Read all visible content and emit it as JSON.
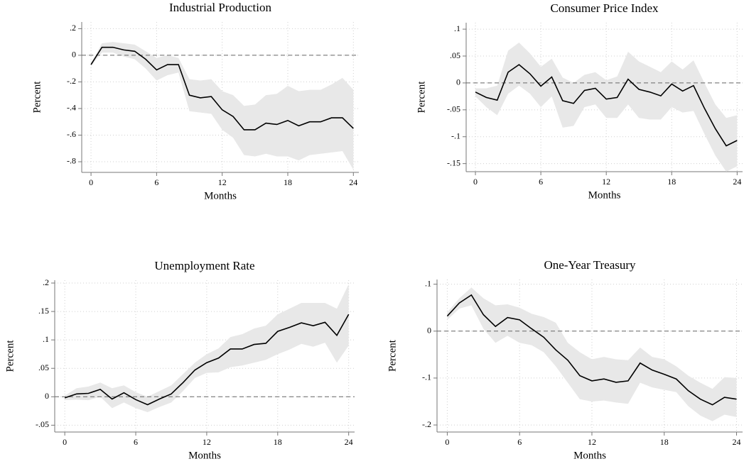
{
  "chart_data": [
    {
      "type": "line",
      "title": "Industrial Production",
      "x_label": "Months",
      "y_label": "Percent",
      "x": [
        0,
        1,
        2,
        3,
        4,
        5,
        6,
        7,
        8,
        9,
        10,
        11,
        12,
        13,
        14,
        15,
        16,
        17,
        18,
        19,
        20,
        21,
        22,
        23,
        24
      ],
      "values": [
        -0.07,
        0.06,
        0.06,
        0.04,
        0.03,
        -0.03,
        -0.11,
        -0.07,
        -0.07,
        -0.3,
        -0.32,
        -0.31,
        -0.41,
        -0.46,
        -0.56,
        -0.56,
        -0.51,
        -0.52,
        -0.49,
        -0.53,
        -0.5,
        -0.5,
        -0.47,
        -0.47,
        -0.55
      ],
      "upper": [
        -0.06,
        0.09,
        0.1,
        0.09,
        0.08,
        0.03,
        -0.02,
        0.0,
        -0.02,
        -0.18,
        -0.19,
        -0.18,
        -0.27,
        -0.3,
        -0.38,
        -0.37,
        -0.3,
        -0.29,
        -0.23,
        -0.27,
        -0.26,
        -0.26,
        -0.22,
        -0.17,
        -0.26
      ],
      "lower": [
        -0.08,
        0.02,
        0.02,
        -0.01,
        -0.03,
        -0.1,
        -0.19,
        -0.15,
        -0.13,
        -0.42,
        -0.43,
        -0.44,
        -0.56,
        -0.62,
        -0.75,
        -0.76,
        -0.74,
        -0.76,
        -0.76,
        -0.79,
        -0.75,
        -0.74,
        -0.73,
        -0.72,
        -0.86
      ],
      "color": "#000000",
      "band_color": "#e8e8e8",
      "reference_line": 0,
      "xlim": [
        -0.85,
        24.5
      ],
      "xticks": [
        0,
        6,
        12,
        18,
        24
      ],
      "ylim": [
        -0.88,
        0.25
      ],
      "yticks": [
        {
          "value": -0.8,
          "label": "-.8"
        },
        {
          "value": -0.6,
          "label": "-.6"
        },
        {
          "value": -0.4,
          "label": "-.4"
        },
        {
          "value": -0.2,
          "label": "-.2"
        },
        0,
        {
          "value": 0.2,
          "label": ".2"
        }
      ],
      "grid": true
    },
    {
      "type": "line",
      "title": "Consumer Price Index",
      "x_label": "Months",
      "y_label": "Percent",
      "x": [
        0,
        1,
        2,
        3,
        4,
        5,
        6,
        7,
        8,
        9,
        10,
        11,
        12,
        13,
        14,
        15,
        16,
        17,
        18,
        19,
        20,
        21,
        22,
        23,
        24
      ],
      "values": [
        -0.017,
        -0.027,
        -0.032,
        0.02,
        0.034,
        0.017,
        -0.006,
        0.011,
        -0.033,
        -0.038,
        -0.014,
        -0.01,
        -0.03,
        -0.027,
        0.007,
        -0.012,
        -0.017,
        -0.024,
        -0.002,
        -0.015,
        -0.005,
        -0.047,
        -0.085,
        -0.117,
        -0.107
      ],
      "upper": [
        -0.01,
        -0.01,
        -0.005,
        0.06,
        0.075,
        0.055,
        0.03,
        0.045,
        0.01,
        0.0,
        0.015,
        0.02,
        0.005,
        0.012,
        0.058,
        0.04,
        0.03,
        0.02,
        0.04,
        0.025,
        0.042,
        0.0,
        -0.04,
        -0.065,
        -0.06
      ],
      "lower": [
        -0.025,
        -0.045,
        -0.06,
        -0.02,
        -0.005,
        -0.02,
        -0.045,
        -0.025,
        -0.083,
        -0.08,
        -0.045,
        -0.04,
        -0.065,
        -0.065,
        -0.04,
        -0.065,
        -0.068,
        -0.068,
        -0.045,
        -0.055,
        -0.052,
        -0.095,
        -0.135,
        -0.165,
        -0.155
      ],
      "color": "#000000",
      "band_color": "#e8e8e8",
      "reference_line": 0,
      "xlim": [
        -0.85,
        24.5
      ],
      "xticks": [
        0,
        6,
        12,
        18,
        24
      ],
      "ylim": [
        -0.165,
        0.112
      ],
      "yticks": [
        {
          "value": -0.15,
          "label": "-.15"
        },
        {
          "value": -0.1,
          "label": "-.1"
        },
        {
          "value": -0.05,
          "label": "-.05"
        },
        0,
        {
          "value": 0.05,
          "label": ".05"
        },
        {
          "value": 0.1,
          "label": ".1"
        }
      ],
      "grid": true
    },
    {
      "type": "line",
      "title": "Unemployment Rate",
      "x_label": "Months",
      "y_label": "Percent",
      "x": [
        0,
        1,
        2,
        3,
        4,
        5,
        6,
        7,
        8,
        9,
        10,
        11,
        12,
        13,
        14,
        15,
        16,
        17,
        18,
        19,
        20,
        21,
        22,
        23,
        24
      ],
      "values": [
        -0.002,
        0.005,
        0.006,
        0.013,
        -0.004,
        0.007,
        -0.005,
        -0.014,
        -0.004,
        0.005,
        0.025,
        0.047,
        0.06,
        0.068,
        0.084,
        0.084,
        0.092,
        0.094,
        0.115,
        0.122,
        0.13,
        0.125,
        0.131,
        0.108,
        0.145
      ],
      "upper": [
        0.002,
        0.015,
        0.018,
        0.025,
        0.015,
        0.02,
        0.008,
        0.0,
        0.01,
        0.02,
        0.04,
        0.06,
        0.075,
        0.085,
        0.105,
        0.11,
        0.12,
        0.125,
        0.145,
        0.155,
        0.165,
        0.165,
        0.165,
        0.155,
        0.198
      ],
      "lower": [
        -0.006,
        -0.005,
        -0.006,
        0.0,
        -0.02,
        -0.01,
        -0.02,
        -0.027,
        -0.018,
        -0.01,
        0.01,
        0.033,
        0.042,
        0.043,
        0.052,
        0.055,
        0.06,
        0.065,
        0.075,
        0.083,
        0.093,
        0.088,
        0.095,
        0.06,
        0.09
      ],
      "color": "#000000",
      "band_color": "#e8e8e8",
      "reference_line": 0,
      "xlim": [
        -0.85,
        24.5
      ],
      "xticks": [
        0,
        6,
        12,
        18,
        24
      ],
      "ylim": [
        -0.062,
        0.205
      ],
      "yticks": [
        {
          "value": -0.05,
          "label": "-.05"
        },
        0,
        {
          "value": 0.05,
          "label": ".05"
        },
        {
          "value": 0.1,
          "label": ".1"
        },
        {
          "value": 0.15,
          "label": ".15"
        },
        {
          "value": 0.2,
          "label": ".2"
        }
      ],
      "grid": true
    },
    {
      "type": "line",
      "title": "One-Year Treasury",
      "x_label": "Months",
      "y_label": "Percent",
      "x": [
        0,
        1,
        2,
        3,
        4,
        5,
        6,
        7,
        8,
        9,
        10,
        11,
        12,
        13,
        14,
        15,
        16,
        17,
        18,
        19,
        20,
        21,
        22,
        23,
        24
      ],
      "values": [
        0.032,
        0.06,
        0.077,
        0.035,
        0.01,
        0.029,
        0.024,
        0.005,
        -0.013,
        -0.04,
        -0.062,
        -0.095,
        -0.106,
        -0.102,
        -0.109,
        -0.106,
        -0.068,
        -0.083,
        -0.092,
        -0.102,
        -0.127,
        -0.145,
        -0.157,
        -0.141,
        -0.145
      ],
      "upper": [
        0.04,
        0.07,
        0.093,
        0.07,
        0.055,
        0.057,
        0.05,
        0.037,
        0.03,
        0.018,
        -0.025,
        -0.045,
        -0.06,
        -0.055,
        -0.06,
        -0.062,
        -0.035,
        -0.055,
        -0.06,
        -0.075,
        -0.095,
        -0.11,
        -0.123,
        -0.098,
        -0.1
      ],
      "lower": [
        0.024,
        0.048,
        0.055,
        0.005,
        -0.025,
        -0.01,
        -0.025,
        -0.03,
        -0.045,
        -0.075,
        -0.11,
        -0.145,
        -0.15,
        -0.148,
        -0.152,
        -0.155,
        -0.11,
        -0.12,
        -0.125,
        -0.13,
        -0.16,
        -0.18,
        -0.192,
        -0.178,
        -0.183
      ],
      "color": "#000000",
      "band_color": "#e8e8e8",
      "reference_line": 0,
      "xlim": [
        -0.85,
        24.5
      ],
      "xticks": [
        0,
        6,
        12,
        18,
        24
      ],
      "ylim": [
        -0.215,
        0.11
      ],
      "yticks": [
        {
          "value": -0.2,
          "label": "-.2"
        },
        {
          "value": -0.1,
          "label": "-.1"
        },
        0,
        {
          "value": 0.1,
          "label": ".1"
        }
      ],
      "grid": true
    }
  ]
}
